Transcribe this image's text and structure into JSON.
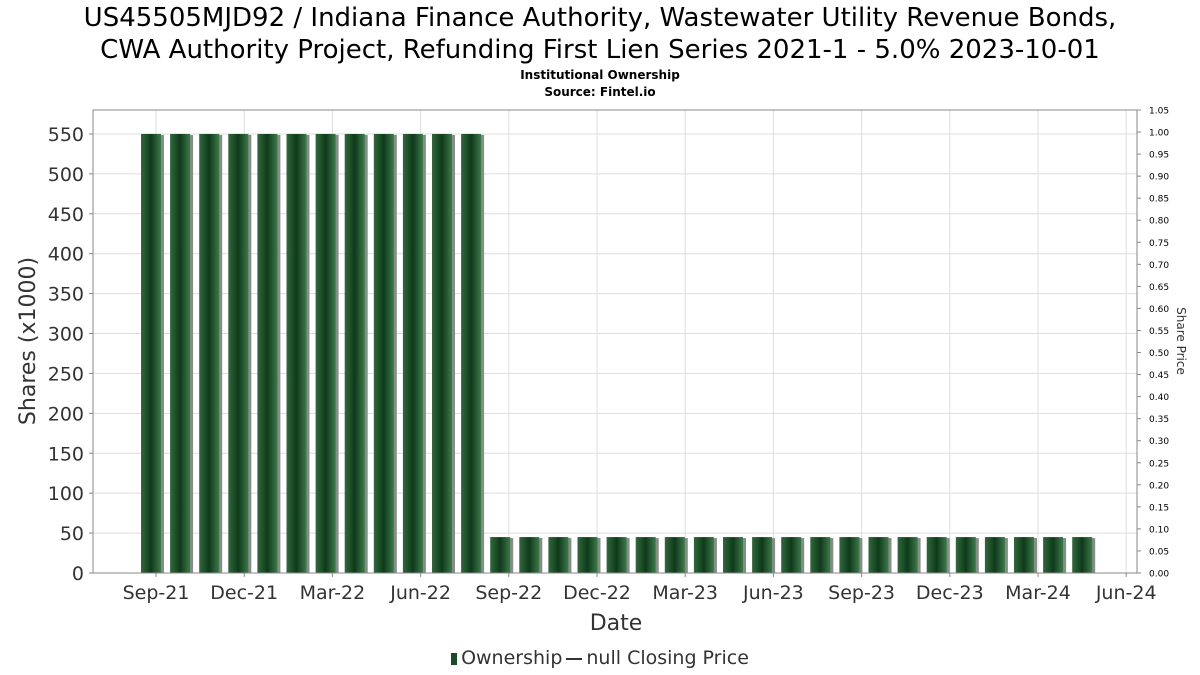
{
  "chart_data": {
    "type": "bar",
    "title_line1": "US45505MJD92 / Indiana Finance Authority, Wastewater Utility Revenue Bonds,",
    "title_line2": "CWA Authority Project, Refunding First Lien Series 2021-1 - 5.0% 2023-10-01",
    "subtitle_line1": "Institutional Ownership",
    "subtitle_line2": "Source: Fintel.io",
    "xlabel": "Date",
    "ylabel": "Shares (x1000)",
    "y2label": "Share Price",
    "ylim": [
      0,
      580
    ],
    "y2lim": [
      0,
      1.05
    ],
    "grid": true,
    "x_ticks": [
      "Sep-21",
      "Dec-21",
      "Mar-22",
      "Jun-22",
      "Sep-22",
      "Dec-22",
      "Mar-23",
      "Jun-23",
      "Sep-23",
      "Dec-23",
      "Mar-24",
      "Jun-24"
    ],
    "y_ticks": [
      0,
      50,
      100,
      150,
      200,
      250,
      300,
      350,
      400,
      450,
      500,
      550
    ],
    "y2_ticks": [
      "0.00",
      "0.05",
      "0.10",
      "0.15",
      "0.20",
      "0.25",
      "0.30",
      "0.35",
      "0.40",
      "0.45",
      "0.50",
      "0.55",
      "0.60",
      "0.65",
      "0.70",
      "0.75",
      "0.80",
      "0.85",
      "0.90",
      "0.95",
      "1.00",
      "1.05"
    ],
    "series": [
      {
        "name": "Ownership",
        "values": [
          550,
          550,
          550,
          550,
          550,
          550,
          550,
          550,
          550,
          550,
          550,
          550,
          45,
          45,
          45,
          45,
          45,
          45,
          45,
          45,
          45,
          45,
          45,
          45,
          45,
          45,
          45,
          45,
          45,
          45,
          45,
          45,
          45
        ]
      }
    ],
    "legend": [
      "Ownership",
      "null Closing Price"
    ],
    "legend_position": "bottom-center",
    "colors": {
      "bar": "#1a4a26",
      "bar_shadow": "#8a8a8a",
      "grid": "#dddddd"
    }
  }
}
